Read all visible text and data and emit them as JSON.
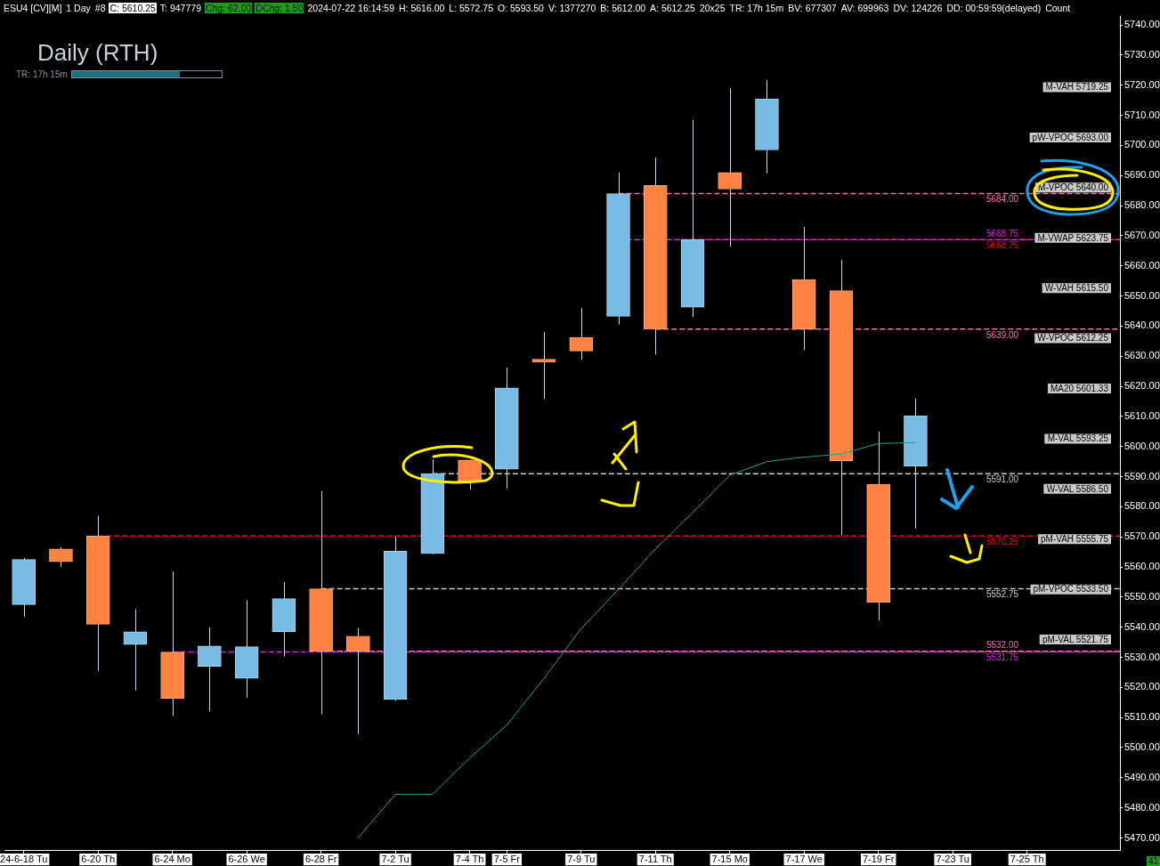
{
  "chart_data": {
    "type": "candlestick",
    "title": "Daily (RTH)",
    "subtitle": "TR: 17h 15m",
    "annotations": [
      "ESU4 [CV][M]",
      "1 Day",
      "#8",
      "C: 5610.25",
      "T: 947779",
      "Chg: 62.00",
      "DChg: 1.50",
      "2024-07-22 16:14:59",
      "H: 5616.00",
      "L: 5572.75",
      "O: 5593.50",
      "V: 1377270",
      "B: 5612.00",
      "A: 5612.25",
      "20x25",
      "TR: 17h 15m",
      "BV: 677307",
      "AV: 699963",
      "DV: 124226",
      "DD: 00:59:59(delayed)",
      "Count",
      "41",
      "M-VAH 5719.25",
      "pW-VPOC 5693.00",
      "M-VPOC 5640.00",
      "M-VWAP 5623.75",
      "W-VAH 5615.50",
      "W-VPOC 5612.25",
      "MA20 5601.33",
      "M-VAL 5593.25",
      "W-VAL 5586.50",
      "pM-VAH 5555.75",
      "pM-VPOC 5533.50",
      "pM-VAL 5521.75"
    ],
    "categories": [
      "24-6-18 Tu",
      null,
      "6-20 Th",
      null,
      "6-24 Mo",
      null,
      "6-26 We",
      null,
      "6-28 Fr",
      null,
      "7-2 Tu",
      null,
      "7-4 Th",
      "7-5 Fr",
      null,
      "7-9 Tu",
      null,
      "7-11 Th",
      null,
      "7-15 Mo",
      null,
      "7-17 We",
      null,
      "7-19 Fr",
      null,
      "7-23 Tu",
      null,
      "7-25 Th",
      null,
      null
    ],
    "ohlc": [
      [
        5547.5,
        5563,
        5543.5,
        5562.5
      ],
      [
        5566,
        5566.5,
        5560,
        5561.75
      ],
      [
        5570.25,
        5577,
        5525.5,
        5541
      ],
      [
        5534.25,
        5546,
        5519,
        5538.5
      ],
      [
        5531.75,
        5558.5,
        5510.5,
        5516.25
      ],
      [
        5527,
        5540,
        5512,
        5533.75
      ],
      [
        5523,
        5549,
        5516.5,
        5533.5
      ],
      [
        5538.5,
        5555,
        5530.25,
        5549.5
      ],
      [
        5552.75,
        5585.25,
        5511,
        5532
      ],
      [
        5537,
        5539.75,
        5504.5,
        5532
      ],
      [
        5516,
        5570,
        5515.5,
        5565.25
      ],
      [
        5564.5,
        5595.75,
        5564.25,
        5591
      ],
      [
        5595.5,
        5595.5,
        5585.75,
        5588.5
      ],
      [
        5592.5,
        5626.25,
        5586,
        5619.5
      ],
      [
        5629,
        5638,
        5615.75,
        5628
      ],
      [
        5636.25,
        5646,
        5628.75,
        5631.75
      ],
      [
        5643.25,
        5691,
        5640.5,
        5684
      ],
      [
        5686.75,
        5696,
        5630.5,
        5639
      ],
      [
        5646.25,
        5708.5,
        5643,
        5668.75
      ],
      [
        5691,
        5719,
        5666.5,
        5685.5
      ],
      [
        5698.5,
        5721.75,
        5690.75,
        5715.5
      ],
      [
        5655.5,
        5673,
        5632,
        5639
      ],
      [
        5651.75,
        5662,
        5570.5,
        5595.25
      ],
      [
        5587.5,
        5605,
        5542.25,
        5548.25
      ],
      [
        5593.5,
        5616,
        5572.75,
        5610.25
      ],
      null,
      null,
      null,
      null,
      null
    ],
    "series": [
      {
        "type": "line",
        "color": "#17a398",
        "values": [
          null,
          null,
          null,
          null,
          null,
          null,
          null,
          null,
          null,
          5470,
          5484.5,
          5484.5,
          5496.5,
          5507.5,
          5523,
          5539.5,
          5552.5,
          5566,
          5578,
          5590.5,
          5595,
          5596.5,
          5597.5,
          5601,
          5601.33,
          null,
          null,
          null,
          null,
          null
        ]
      }
    ],
    "ref_lines": [
      {
        "axis": "y",
        "value": 5570.25,
        "label": "5570.25",
        "color": "#ff0000",
        "line_style": "dashed"
      },
      {
        "axis": "y",
        "value": 5531.75,
        "label": "5531.75",
        "color": "#e020e0",
        "line_style": "dashed"
      },
      {
        "axis": "y",
        "value": 5532,
        "label": "5532.00",
        "color": "#ff69b4",
        "line_style": "dashed"
      },
      {
        "axis": "y",
        "value": 5552.75,
        "label": "5552.75",
        "color": "#c8c8c8",
        "line_style": "dashed"
      },
      {
        "axis": "y",
        "value": 5591,
        "label": "5591.00",
        "color": "#c8c8c8",
        "line_style": "dashed"
      },
      {
        "axis": "y",
        "value": 5668.75,
        "label": "5668.75",
        "color": "#ff0000",
        "line_style": "dashed"
      },
      {
        "axis": "y",
        "value": 5668.75,
        "label": "5668.75",
        "color": "#e020e0",
        "line_style": "dashed"
      },
      {
        "axis": "y",
        "value": 5684,
        "label": "5684.00",
        "color": "#ff69b4",
        "line_style": "dashed"
      },
      {
        "axis": "y",
        "value": 5639,
        "label": "5639.00",
        "color": "#ff69b4",
        "line_style": "dashed"
      }
    ],
    "ylim": [
      5466,
      5743
    ],
    "yticks": [
      {
        "value": 5470,
        "label": "5470.00"
      },
      {
        "value": 5480,
        "label": "5480.00"
      },
      {
        "value": 5490,
        "label": "5490.00"
      },
      {
        "value": 5500,
        "label": "5500.00"
      },
      {
        "value": 5510,
        "label": "5510.00"
      },
      {
        "value": 5520,
        "label": "5520.00"
      },
      {
        "value": 5530,
        "label": "5530.00"
      },
      {
        "value": 5540,
        "label": "5540.00"
      },
      {
        "value": 5550,
        "label": "5550.00"
      },
      {
        "value": 5560,
        "label": "5560.00"
      },
      {
        "value": 5570,
        "label": "5570.00"
      },
      {
        "value": 5580,
        "label": "5580.00"
      },
      {
        "value": 5590,
        "label": "5590.00"
      },
      {
        "value": 5600,
        "label": "5600.00"
      },
      {
        "value": 5610,
        "label": "5610.00"
      },
      {
        "value": 5620,
        "label": "5620.00"
      },
      {
        "value": 5630,
        "label": "5630.00"
      },
      {
        "value": 5640,
        "label": "5640.00"
      },
      {
        "value": 5650,
        "label": "5650.00"
      },
      {
        "value": 5660,
        "label": "5660.00"
      },
      {
        "value": 5670,
        "label": "5670.00"
      },
      {
        "value": 5680,
        "label": "5680.00"
      },
      {
        "value": 5690,
        "label": "5690.00"
      },
      {
        "value": 5700,
        "label": "5700.00"
      },
      {
        "value": 5710,
        "label": "5710.00"
      },
      {
        "value": 5720,
        "label": "5720.00"
      },
      {
        "value": 5730,
        "label": "5730.00"
      },
      {
        "value": 5740,
        "label": "5740.00"
      }
    ]
  }
}
